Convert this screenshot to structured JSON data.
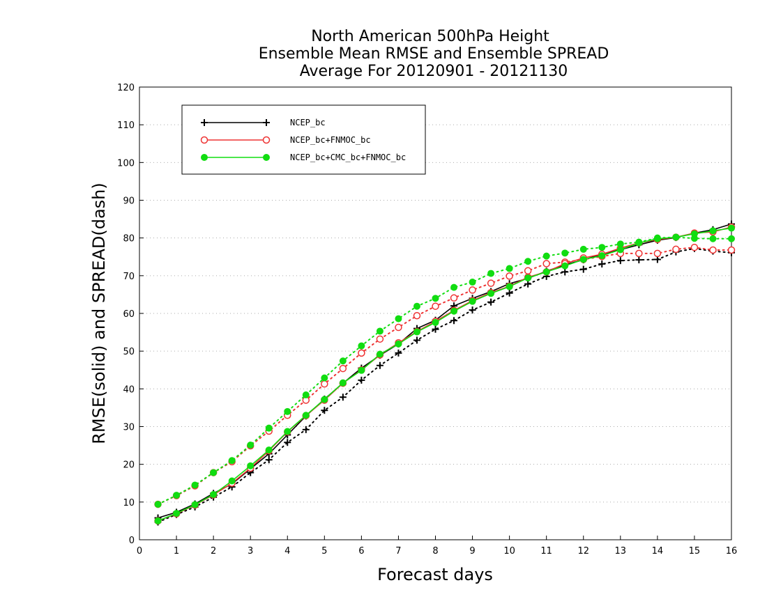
{
  "chart_data": {
    "type": "line",
    "title_lines": [
      "North American 500hPa Height",
      "Ensemble Mean RMSE and Ensemble SPREAD",
      "Average For 20120901 - 20121130"
    ],
    "xlabel": "Forecast days",
    "ylabel": "RMSE(solid) and SPREAD(dash)",
    "xlim": [
      0,
      16
    ],
    "ylim": [
      0,
      120
    ],
    "xticks": [
      0,
      1,
      2,
      3,
      4,
      5,
      6,
      7,
      8,
      9,
      10,
      11,
      12,
      13,
      14,
      15,
      16
    ],
    "yticks": [
      0,
      10,
      20,
      30,
      40,
      50,
      60,
      70,
      80,
      90,
      100,
      110,
      120
    ],
    "grid": true,
    "legend_position": "top-left",
    "x": [
      0.5,
      1,
      1.5,
      2,
      2.5,
      3,
      3.5,
      4,
      4.5,
      5,
      5.5,
      6,
      6.5,
      7,
      7.5,
      8,
      8.5,
      9,
      9.5,
      10,
      10.5,
      11,
      11.5,
      12,
      12.5,
      13,
      13.5,
      14,
      14.5,
      15,
      15.5,
      16
    ],
    "series": [
      {
        "name": "NCEP_bc",
        "color": "#000000",
        "marker": "plus",
        "rmse": [
          5.8,
          7.3,
          9.5,
          12.3,
          14.8,
          18.8,
          22.8,
          27.8,
          32.8,
          37.3,
          41.5,
          45.5,
          48.9,
          51.9,
          56.0,
          58.2,
          62.0,
          64.0,
          65.8,
          67.9,
          69.3,
          71.2,
          72.9,
          74.2,
          75.7,
          76.9,
          78.2,
          79.4,
          80.1,
          81.3,
          82.2,
          83.7
        ],
        "spread": [
          4.7,
          6.7,
          8.7,
          11.3,
          14.0,
          17.8,
          21.2,
          25.8,
          29.2,
          34.3,
          37.8,
          42.3,
          46.2,
          49.5,
          52.9,
          55.8,
          58.1,
          60.9,
          63.0,
          65.4,
          67.8,
          69.8,
          71.0,
          71.7,
          73.1,
          74.0,
          74.2,
          74.3,
          76.3,
          77.2,
          76.5,
          76.1
        ]
      },
      {
        "name": "NCEP_bc+FNMOC_bc",
        "color": "#ee3333",
        "marker": "open-circle",
        "rmse": [
          5.0,
          6.9,
          9.2,
          11.9,
          15.0,
          19.0,
          23.6,
          28.6,
          32.9,
          37.0,
          41.5,
          45.0,
          49.0,
          52.2,
          55.2,
          57.9,
          60.8,
          63.4,
          65.5,
          67.2,
          69.6,
          71.0,
          73.2,
          74.7,
          75.7,
          77.3,
          78.7,
          79.6,
          80.2,
          81.3,
          81.6,
          82.9
        ],
        "spread": [
          9.4,
          11.7,
          14.3,
          17.8,
          20.7,
          24.9,
          28.8,
          33.0,
          37.0,
          41.3,
          45.4,
          49.5,
          53.2,
          56.3,
          59.4,
          61.9,
          64.1,
          66.2,
          68.0,
          69.9,
          71.3,
          73.2,
          73.6,
          74.3,
          75.1,
          75.9,
          75.9,
          75.9,
          77.0,
          77.5,
          76.8,
          76.8
        ]
      },
      {
        "name": "NCEP_bc+CMC_bc+FNMOC_bc",
        "color": "#11dd11",
        "marker": "filled-circle",
        "rmse": [
          5.0,
          7.0,
          9.3,
          12.0,
          15.6,
          19.6,
          23.8,
          28.7,
          33.0,
          37.2,
          41.6,
          44.9,
          49.2,
          51.9,
          55.1,
          57.6,
          60.6,
          63.2,
          65.3,
          67.1,
          69.4,
          71.0,
          72.6,
          74.3,
          75.3,
          76.9,
          78.7,
          79.8,
          80.2,
          81.1,
          81.9,
          82.6
        ],
        "spread": [
          9.4,
          11.8,
          14.5,
          17.8,
          21.0,
          25.1,
          29.6,
          34.0,
          38.4,
          42.9,
          47.4,
          51.4,
          55.3,
          58.6,
          61.9,
          64.0,
          66.9,
          68.3,
          70.6,
          71.9,
          73.8,
          75.2,
          76.0,
          77.0,
          77.5,
          78.4,
          78.9,
          80.0,
          80.2,
          79.9,
          79.8,
          79.8
        ]
      }
    ]
  }
}
